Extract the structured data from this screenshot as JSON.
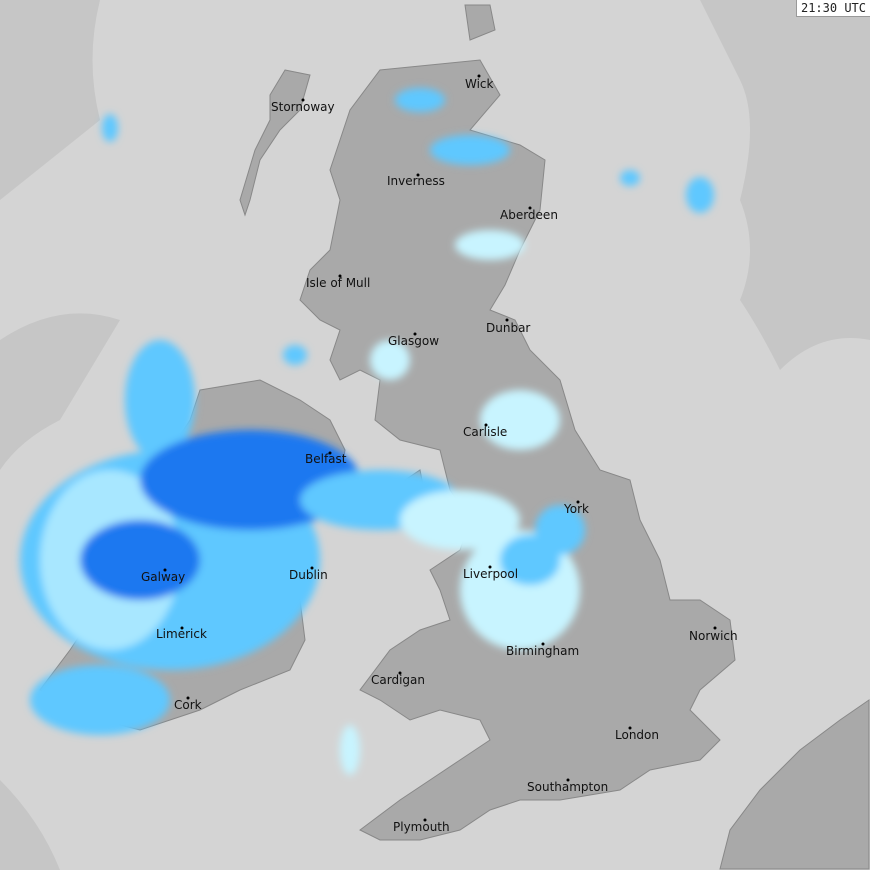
{
  "timestamp": "21:30 UTC",
  "colors": {
    "outside_coverage": "#c6c6c6",
    "sea_in_coverage": "#d4d4d4",
    "land": "#a9a9a9",
    "rain_light": "#c8f4ff",
    "rain_moderate": "#5ec8ff",
    "rain_heavy": "#1a78f0",
    "rain_very_heavy": "#1040d0"
  },
  "cities": [
    {
      "name": "Wick"
    },
    {
      "name": "Stornoway"
    },
    {
      "name": "Inverness"
    },
    {
      "name": "Aberdeen"
    },
    {
      "name": "Isle of Mull"
    },
    {
      "name": "Glasgow"
    },
    {
      "name": "Dunbar"
    },
    {
      "name": "Carlisle"
    },
    {
      "name": "Belfast"
    },
    {
      "name": "York"
    },
    {
      "name": "Liverpool"
    },
    {
      "name": "Galway"
    },
    {
      "name": "Dublin"
    },
    {
      "name": "Limerick"
    },
    {
      "name": "Norwich"
    },
    {
      "name": "Birmingham"
    },
    {
      "name": "Cardigan"
    },
    {
      "name": "Cork"
    },
    {
      "name": "London"
    },
    {
      "name": "Southampton"
    },
    {
      "name": "Plymouth"
    }
  ]
}
